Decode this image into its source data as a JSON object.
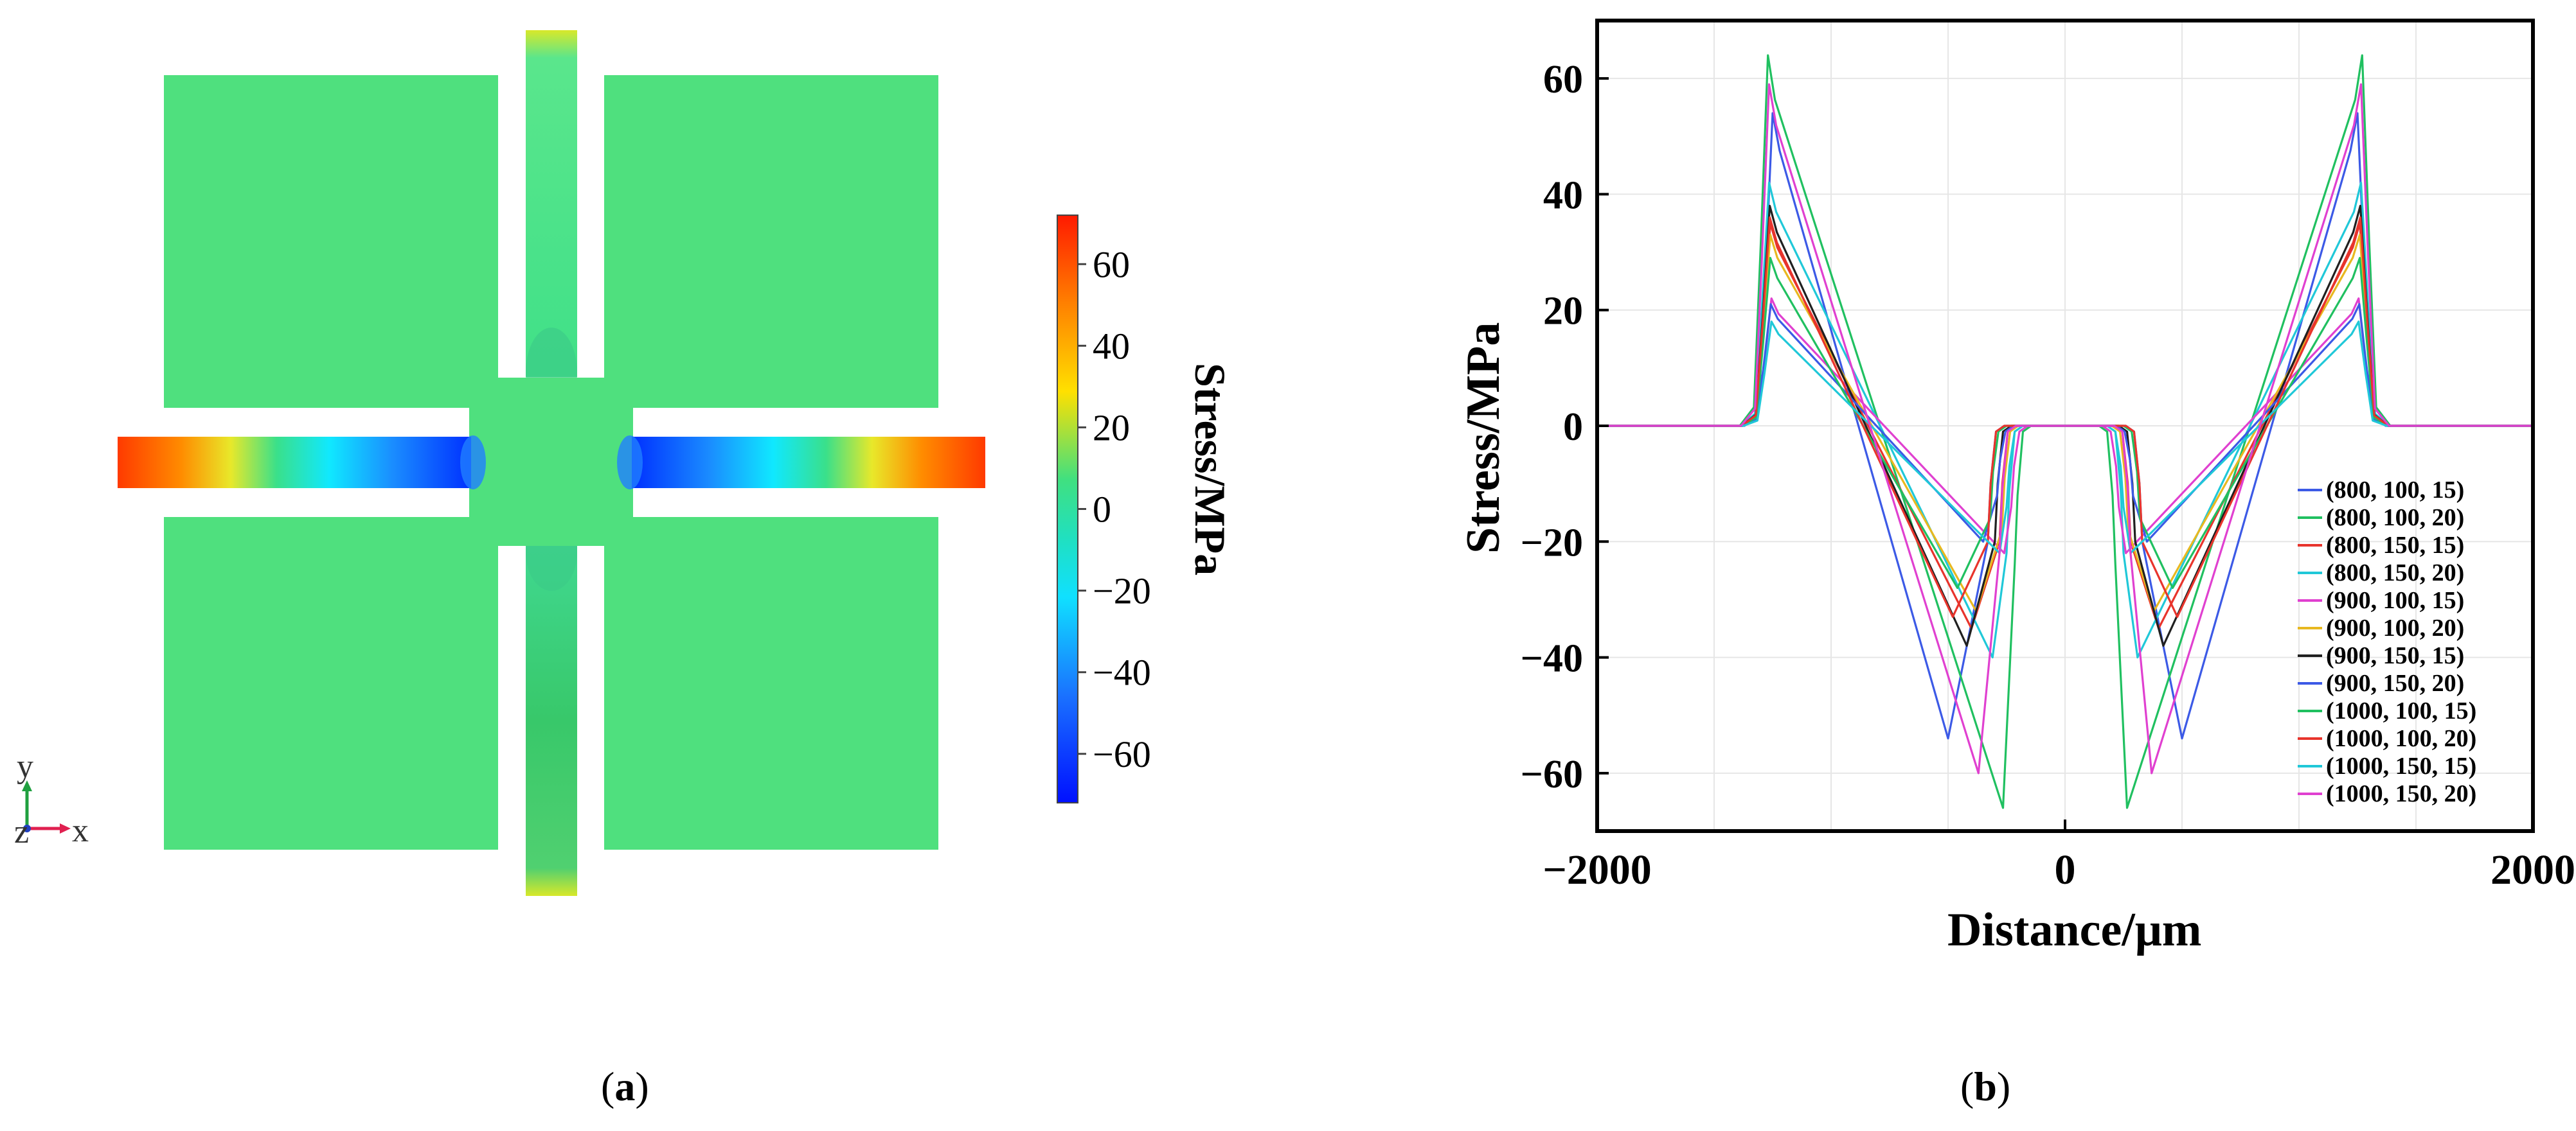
{
  "figure": {
    "panel_a_label": "a",
    "panel_b_label": "b"
  },
  "simulation": {
    "colorbar": {
      "label": "Stress/MPa",
      "min": -72,
      "max": 72,
      "ticks": [
        60,
        40,
        20,
        0,
        -20,
        -40,
        -60
      ],
      "tick_labels": [
        "60",
        "40",
        "20",
        "0",
        "−20",
        "−40",
        "−60"
      ]
    },
    "axes_triad": {
      "y": "y",
      "z": "z",
      "x": "x"
    },
    "colors": {
      "plate": "#4fe07e",
      "high": "#ff2000",
      "low": "#0030ff"
    }
  },
  "chart_data": {
    "type": "line",
    "xlabel": "Distance/μm",
    "ylabel": "Stress/MPa",
    "xlim": [
      -2000,
      2000
    ],
    "ylim": [
      -70,
      70
    ],
    "xticks": [
      -2000,
      0,
      2000
    ],
    "xtick_labels": [
      "−2000",
      "0",
      "2000"
    ],
    "yticks": [
      60,
      40,
      20,
      0,
      -20,
      -40,
      -60
    ],
    "ytick_labels": [
      "60",
      "40",
      "20",
      "0",
      "−20",
      "−40",
      "−60"
    ],
    "grid": true,
    "legend_position": "bottom-right",
    "series": [
      {
        "name": "(800, 100, 15)",
        "color": "#3c5ae6",
        "peak": 54,
        "trough": -54,
        "edge": 1250,
        "low_x": 500,
        "inner_x": 330,
        "inner_y": -20
      },
      {
        "name": "(800, 100, 20)",
        "color": "#20c060",
        "peak": 64,
        "trough": -66,
        "edge": 1270,
        "low_x": 265,
        "inner_x": 215,
        "inner_y": -24
      },
      {
        "name": "(800, 150, 15)",
        "color": "#e8342c",
        "peak": 35,
        "trough": -35,
        "edge": 1260,
        "low_x": 400,
        "inner_x": 280,
        "inner_y": -20
      },
      {
        "name": "(800, 150, 20)",
        "color": "#20c8d8",
        "peak": 42,
        "trough": -40,
        "edge": 1265,
        "low_x": 310,
        "inner_x": 250,
        "inner_y": -22
      },
      {
        "name": "(900, 100, 15)",
        "color": "#e040d0",
        "peak": 22,
        "trough": -22,
        "edge": 1255,
        "low_x": 260,
        "inner_x": 230,
        "inner_y": -14
      },
      {
        "name": "(900, 100, 20)",
        "color": "#e8b820",
        "peak": 33,
        "trough": -32,
        "edge": 1260,
        "low_x": 380,
        "inner_x": 270,
        "inner_y": -18
      },
      {
        "name": "(900, 150, 15)",
        "color": "#202020",
        "peak": 38,
        "trough": -38,
        "edge": 1262,
        "low_x": 420,
        "inner_x": 300,
        "inner_y": -20
      },
      {
        "name": "(900, 150, 20)",
        "color": "#3c5ae6",
        "peak": 21,
        "trough": -20,
        "edge": 1258,
        "low_x": 350,
        "inner_x": 290,
        "inner_y": -12
      },
      {
        "name": "(1000, 100, 15)",
        "color": "#20c060",
        "peak": 29,
        "trough": -28,
        "edge": 1260,
        "low_x": 460,
        "inner_x": 320,
        "inner_y": -16
      },
      {
        "name": "(1000, 100, 20)",
        "color": "#e8342c",
        "peak": 36,
        "trough": -33,
        "edge": 1262,
        "low_x": 480,
        "inner_x": 330,
        "inner_y": -20
      },
      {
        "name": "(1000, 150, 15)",
        "color": "#20c8d8",
        "peak": 18,
        "trough": -22,
        "edge": 1255,
        "low_x": 280,
        "inner_x": 250,
        "inner_y": -14
      },
      {
        "name": "(1000, 150, 20)",
        "color": "#e040d0",
        "peak": 59,
        "trough": -60,
        "edge": 1265,
        "low_x": 370,
        "inner_x": 280,
        "inner_y": -22
      }
    ]
  }
}
